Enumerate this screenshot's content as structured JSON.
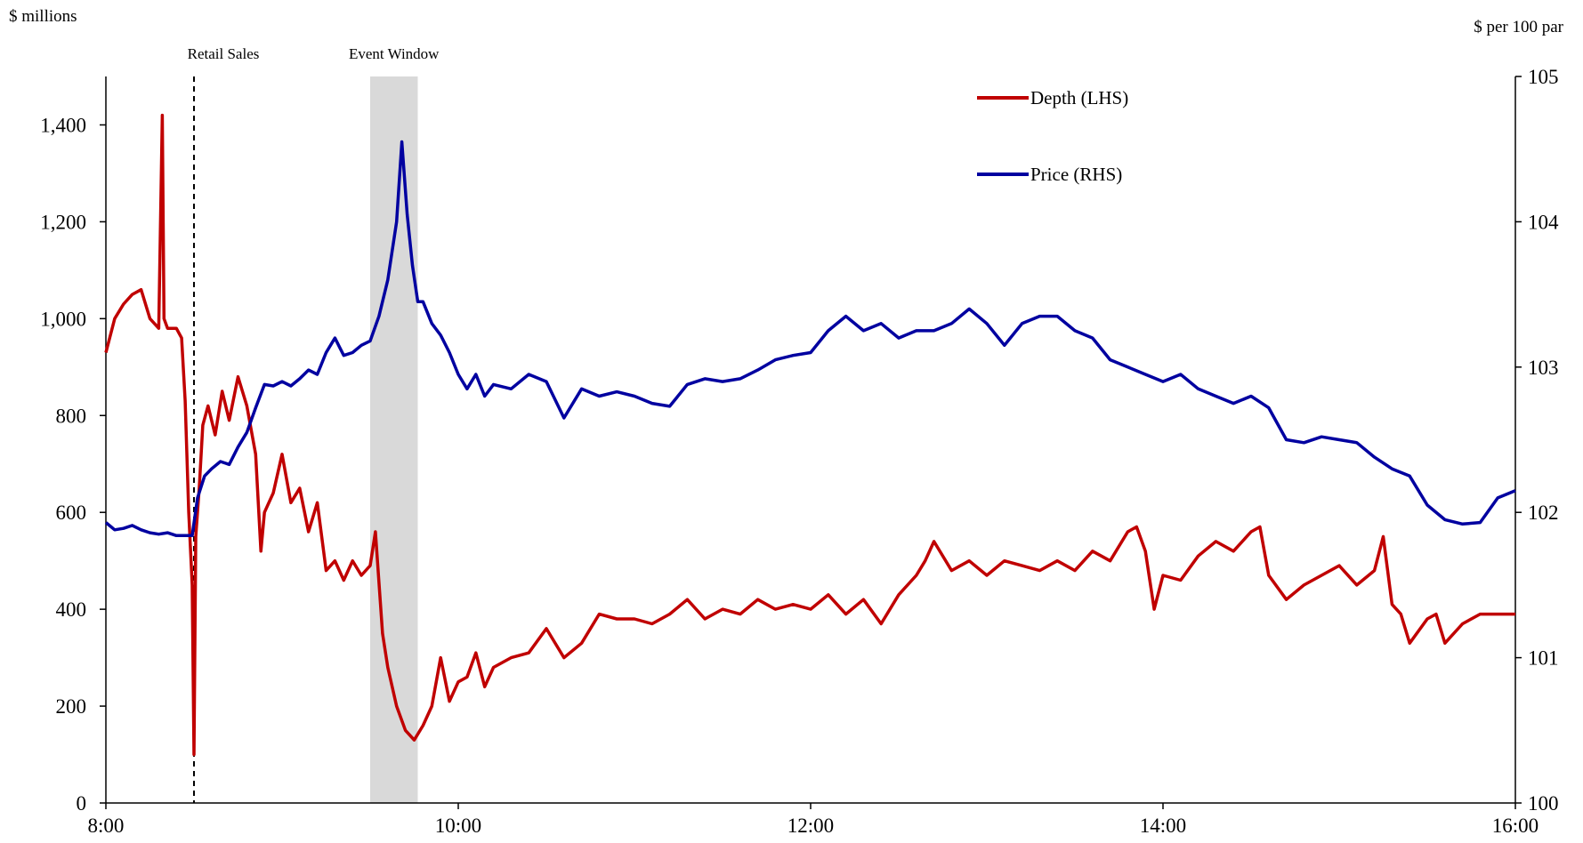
{
  "chart_data": {
    "type": "line",
    "y_left_label": "$ millions",
    "y_right_label": "$ per 100 par",
    "y_left_lim": [
      0,
      1500
    ],
    "y_right_lim": [
      100,
      105
    ],
    "x_lim_hours": [
      8,
      16
    ],
    "x_ticks": [
      {
        "value": 8,
        "label": "8:00"
      },
      {
        "value": 10,
        "label": "10:00"
      },
      {
        "value": 12,
        "label": "12:00"
      },
      {
        "value": 14,
        "label": "14:00"
      },
      {
        "value": 16,
        "label": "16:00"
      }
    ],
    "y_left_ticks": [
      {
        "value": 0,
        "label": "0"
      },
      {
        "value": 200,
        "label": "200"
      },
      {
        "value": 400,
        "label": "400"
      },
      {
        "value": 600,
        "label": "600"
      },
      {
        "value": 800,
        "label": "800"
      },
      {
        "value": 1000,
        "label": "1,000"
      },
      {
        "value": 1200,
        "label": "1,200"
      },
      {
        "value": 1400,
        "label": "1,400"
      }
    ],
    "y_right_ticks": [
      {
        "value": 100,
        "label": "100"
      },
      {
        "value": 101,
        "label": "101"
      },
      {
        "value": 102,
        "label": "102"
      },
      {
        "value": 103,
        "label": "103"
      },
      {
        "value": 104,
        "label": "104"
      },
      {
        "value": 105,
        "label": "105"
      }
    ],
    "annotations": [
      {
        "type": "vline",
        "x": 8.5,
        "label": "Retail Sales"
      },
      {
        "type": "band",
        "x_start": 9.5,
        "x_end": 9.77,
        "label": "Event Window"
      }
    ],
    "legend_position": "top-right",
    "series": [
      {
        "name": "Depth (LHS)",
        "axis": "left",
        "color": "#c00000",
        "x": [
          8.0,
          8.05,
          8.1,
          8.15,
          8.2,
          8.25,
          8.3,
          8.32,
          8.33,
          8.35,
          8.4,
          8.43,
          8.45,
          8.47,
          8.49,
          8.5,
          8.51,
          8.53,
          8.55,
          8.58,
          8.62,
          8.66,
          8.7,
          8.75,
          8.8,
          8.85,
          8.88,
          8.9,
          8.95,
          9.0,
          9.05,
          9.1,
          9.15,
          9.2,
          9.25,
          9.3,
          9.35,
          9.4,
          9.45,
          9.5,
          9.53,
          9.57,
          9.6,
          9.65,
          9.7,
          9.75,
          9.8,
          9.85,
          9.9,
          9.95,
          10.0,
          10.05,
          10.1,
          10.15,
          10.2,
          10.3,
          10.4,
          10.5,
          10.6,
          10.7,
          10.8,
          10.9,
          11.0,
          11.1,
          11.2,
          11.3,
          11.4,
          11.5,
          11.6,
          11.7,
          11.8,
          11.9,
          12.0,
          12.1,
          12.2,
          12.3,
          12.4,
          12.5,
          12.6,
          12.65,
          12.7,
          12.8,
          12.9,
          13.0,
          13.1,
          13.2,
          13.3,
          13.4,
          13.5,
          13.6,
          13.7,
          13.8,
          13.85,
          13.9,
          13.95,
          14.0,
          14.1,
          14.2,
          14.3,
          14.4,
          14.5,
          14.55,
          14.6,
          14.7,
          14.8,
          14.9,
          15.0,
          15.1,
          15.2,
          15.25,
          15.3,
          15.35,
          15.4,
          15.5,
          15.55,
          15.6,
          15.7,
          15.8,
          15.9,
          16.0
        ],
        "values": [
          930,
          1000,
          1030,
          1050,
          1060,
          1000,
          980,
          1420,
          1000,
          980,
          980,
          960,
          830,
          600,
          450,
          100,
          550,
          650,
          780,
          820,
          760,
          850,
          790,
          880,
          820,
          720,
          520,
          600,
          640,
          720,
          620,
          650,
          560,
          620,
          480,
          500,
          460,
          500,
          470,
          490,
          560,
          350,
          280,
          200,
          150,
          130,
          160,
          200,
          300,
          210,
          250,
          260,
          310,
          240,
          280,
          300,
          310,
          360,
          300,
          330,
          390,
          380,
          380,
          370,
          390,
          420,
          380,
          400,
          390,
          420,
          400,
          410,
          400,
          430,
          390,
          420,
          370,
          430,
          470,
          500,
          540,
          480,
          500,
          470,
          500,
          490,
          480,
          500,
          480,
          520,
          500,
          560,
          570,
          520,
          400,
          470,
          460,
          510,
          540,
          520,
          560,
          570,
          470,
          420,
          450,
          470,
          490,
          450,
          480,
          550,
          410,
          390,
          330,
          380,
          390,
          330,
          370,
          390,
          390,
          390
        ]
      },
      {
        "name": "Price (RHS)",
        "axis": "right",
        "color": "#0000a0",
        "x": [
          8.0,
          8.05,
          8.1,
          8.15,
          8.2,
          8.25,
          8.3,
          8.35,
          8.4,
          8.45,
          8.49,
          8.52,
          8.56,
          8.6,
          8.65,
          8.7,
          8.75,
          8.8,
          8.85,
          8.9,
          8.95,
          9.0,
          9.05,
          9.1,
          9.15,
          9.2,
          9.25,
          9.3,
          9.35,
          9.4,
          9.45,
          9.5,
          9.55,
          9.6,
          9.65,
          9.68,
          9.71,
          9.74,
          9.77,
          9.8,
          9.85,
          9.9,
          9.95,
          10.0,
          10.05,
          10.1,
          10.15,
          10.2,
          10.3,
          10.4,
          10.5,
          10.6,
          10.7,
          10.8,
          10.9,
          11.0,
          11.1,
          11.2,
          11.3,
          11.4,
          11.5,
          11.6,
          11.7,
          11.8,
          11.9,
          12.0,
          12.1,
          12.2,
          12.3,
          12.4,
          12.5,
          12.6,
          12.7,
          12.8,
          12.9,
          13.0,
          13.1,
          13.2,
          13.3,
          13.4,
          13.5,
          13.6,
          13.7,
          13.8,
          13.9,
          14.0,
          14.1,
          14.2,
          14.3,
          14.4,
          14.5,
          14.6,
          14.7,
          14.8,
          14.9,
          15.0,
          15.1,
          15.2,
          15.3,
          15.4,
          15.5,
          15.6,
          15.7,
          15.8,
          15.9,
          16.0
        ],
        "values": [
          101.93,
          101.88,
          101.89,
          101.91,
          101.88,
          101.86,
          101.85,
          101.86,
          101.84,
          101.84,
          101.84,
          102.1,
          102.25,
          102.3,
          102.35,
          102.33,
          102.45,
          102.55,
          102.72,
          102.88,
          102.87,
          102.9,
          102.87,
          102.92,
          102.98,
          102.95,
          103.1,
          103.2,
          103.08,
          103.1,
          103.15,
          103.18,
          103.35,
          103.6,
          104.0,
          104.55,
          104.05,
          103.7,
          103.45,
          103.45,
          103.3,
          103.22,
          103.1,
          102.95,
          102.85,
          102.95,
          102.8,
          102.88,
          102.85,
          102.95,
          102.9,
          102.65,
          102.85,
          102.8,
          102.83,
          102.8,
          102.75,
          102.73,
          102.88,
          102.92,
          102.9,
          102.92,
          102.98,
          103.05,
          103.08,
          103.1,
          103.25,
          103.35,
          103.25,
          103.3,
          103.2,
          103.25,
          103.25,
          103.3,
          103.4,
          103.3,
          103.15,
          103.3,
          103.35,
          103.35,
          103.25,
          103.2,
          103.05,
          103.0,
          102.95,
          102.9,
          102.95,
          102.85,
          102.8,
          102.75,
          102.8,
          102.72,
          102.5,
          102.48,
          102.52,
          102.5,
          102.48,
          102.38,
          102.3,
          102.25,
          102.05,
          101.95,
          101.92,
          101.93,
          102.1,
          102.15
        ]
      }
    ]
  }
}
